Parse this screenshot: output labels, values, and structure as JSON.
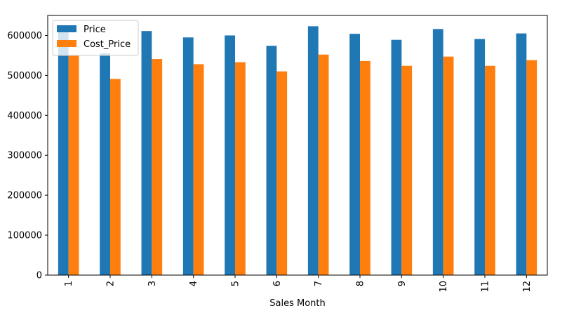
{
  "chart_data": {
    "type": "bar",
    "title": "",
    "xlabel": "Sales Month",
    "ylabel": "",
    "categories": [
      "1",
      "2",
      "3",
      "4",
      "5",
      "6",
      "7",
      "8",
      "9",
      "10",
      "11",
      "12"
    ],
    "series": [
      {
        "name": "Price",
        "color": "#1f77b4",
        "values": [
          615000,
          555000,
          611000,
          595000,
          600000,
          574000,
          623000,
          604000,
          589000,
          616000,
          591000,
          605000
        ]
      },
      {
        "name": "Cost_Price",
        "color": "#ff7f0e",
        "values": [
          551000,
          491000,
          541000,
          528000,
          533000,
          510000,
          552000,
          536000,
          524000,
          547000,
          524000,
          538000
        ]
      }
    ],
    "ylim": [
      0,
      650000
    ],
    "yticks": [
      0,
      100000,
      200000,
      300000,
      400000,
      500000,
      600000
    ],
    "ytick_labels": [
      "0",
      "100000",
      "200000",
      "300000",
      "400000",
      "500000",
      "600000"
    ],
    "grid": false,
    "legend_position": "top-left"
  }
}
